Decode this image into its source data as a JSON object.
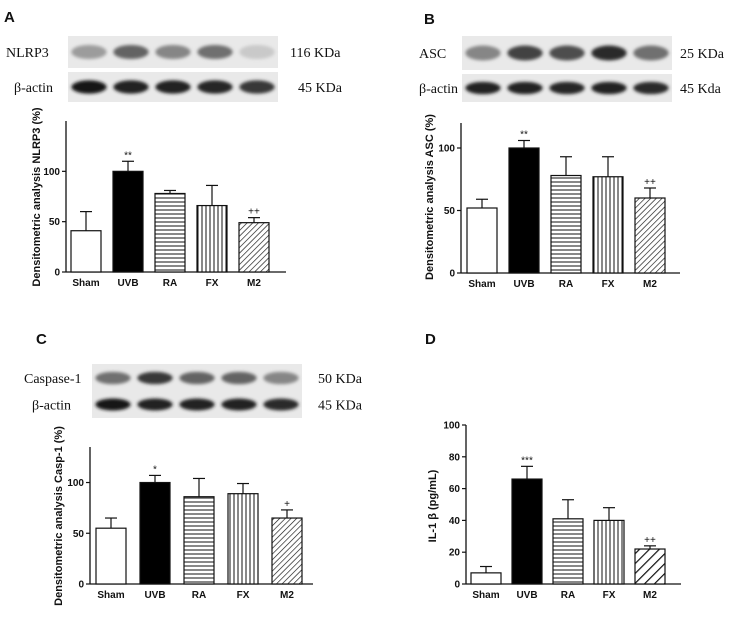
{
  "chart_data": [
    {
      "type": "bar",
      "panel": "A",
      "blot": {
        "rows": [
          {
            "label": "NLRP3",
            "size": "116 KDa",
            "bands": [
              0.35,
              0.6,
              0.45,
              0.55,
              0.15
            ]
          },
          {
            "label": "β-actin",
            "size": "45 KDa",
            "bands": [
              0.95,
              0.9,
              0.9,
              0.88,
              0.8
            ]
          }
        ]
      },
      "categories": [
        "Sham",
        "UVB",
        "RA",
        "FX",
        "M2"
      ],
      "values": [
        41,
        100,
        78,
        66,
        49
      ],
      "errors": [
        19,
        10,
        3,
        20,
        5
      ],
      "significance": [
        "",
        "**",
        "",
        "",
        "++"
      ],
      "patterns": [
        "open",
        "solid",
        "horizontal",
        "vertical",
        "diagonal"
      ],
      "ylabel": "Densitometric analysis NLRP3 (%)",
      "ylim": [
        0,
        150
      ],
      "yticks": [
        0,
        50,
        100
      ]
    },
    {
      "type": "bar",
      "panel": "B",
      "blot": {
        "rows": [
          {
            "label": "ASC",
            "size": "25 KDa",
            "bands": [
              0.45,
              0.75,
              0.7,
              0.85,
              0.55
            ]
          },
          {
            "label": "β-actin",
            "size": "45 Kda",
            "bands": [
              0.9,
              0.9,
              0.88,
              0.9,
              0.85
            ]
          }
        ]
      },
      "categories": [
        "Sham",
        "UVB",
        "RA",
        "FX",
        "M2"
      ],
      "values": [
        52,
        100,
        78,
        77,
        60
      ],
      "errors": [
        7,
        6,
        15,
        16,
        8
      ],
      "significance": [
        "",
        "**",
        "",
        "",
        "++"
      ],
      "patterns": [
        "open",
        "solid",
        "horizontal",
        "vertical",
        "diagonal"
      ],
      "ylabel": "Densitometric analysis ASC (%)",
      "ylim": [
        0,
        120
      ],
      "yticks": [
        0,
        50,
        100
      ]
    },
    {
      "type": "bar",
      "panel": "C",
      "blot": {
        "rows": [
          {
            "label": "Caspase-1",
            "size": "50 KDa",
            "bands": [
              0.55,
              0.8,
              0.6,
              0.6,
              0.45
            ]
          },
          {
            "label": "β-actin",
            "size": "45 KDa",
            "bands": [
              0.95,
              0.9,
              0.9,
              0.9,
              0.85
            ]
          }
        ]
      },
      "categories": [
        "Sham",
        "UVB",
        "RA",
        "FX",
        "M2"
      ],
      "values": [
        55,
        100,
        86,
        89,
        65
      ],
      "errors": [
        10,
        7,
        18,
        10,
        8
      ],
      "significance": [
        "",
        "*",
        "",
        "",
        "+"
      ],
      "patterns": [
        "open",
        "solid",
        "horizontal",
        "vertical",
        "diagonal"
      ],
      "ylabel": "Densitometric analysis Casp-1 (%)",
      "ylim": [
        0,
        135
      ],
      "yticks": [
        0,
        50,
        100
      ]
    },
    {
      "type": "bar",
      "panel": "D",
      "categories": [
        "Sham",
        "UVB",
        "RA",
        "FX",
        "M2"
      ],
      "values": [
        7,
        66,
        41,
        40,
        22
      ],
      "errors": [
        4,
        8,
        12,
        8,
        2
      ],
      "significance": [
        "",
        "***",
        "",
        "",
        "++"
      ],
      "patterns": [
        "open",
        "solid",
        "horizontal",
        "vertical",
        "diagonal-wide"
      ],
      "ylabel": "IL-1 β (pg/mL)",
      "ylim": [
        0,
        100
      ],
      "yticks": [
        0,
        20,
        40,
        60,
        80,
        100
      ]
    }
  ]
}
